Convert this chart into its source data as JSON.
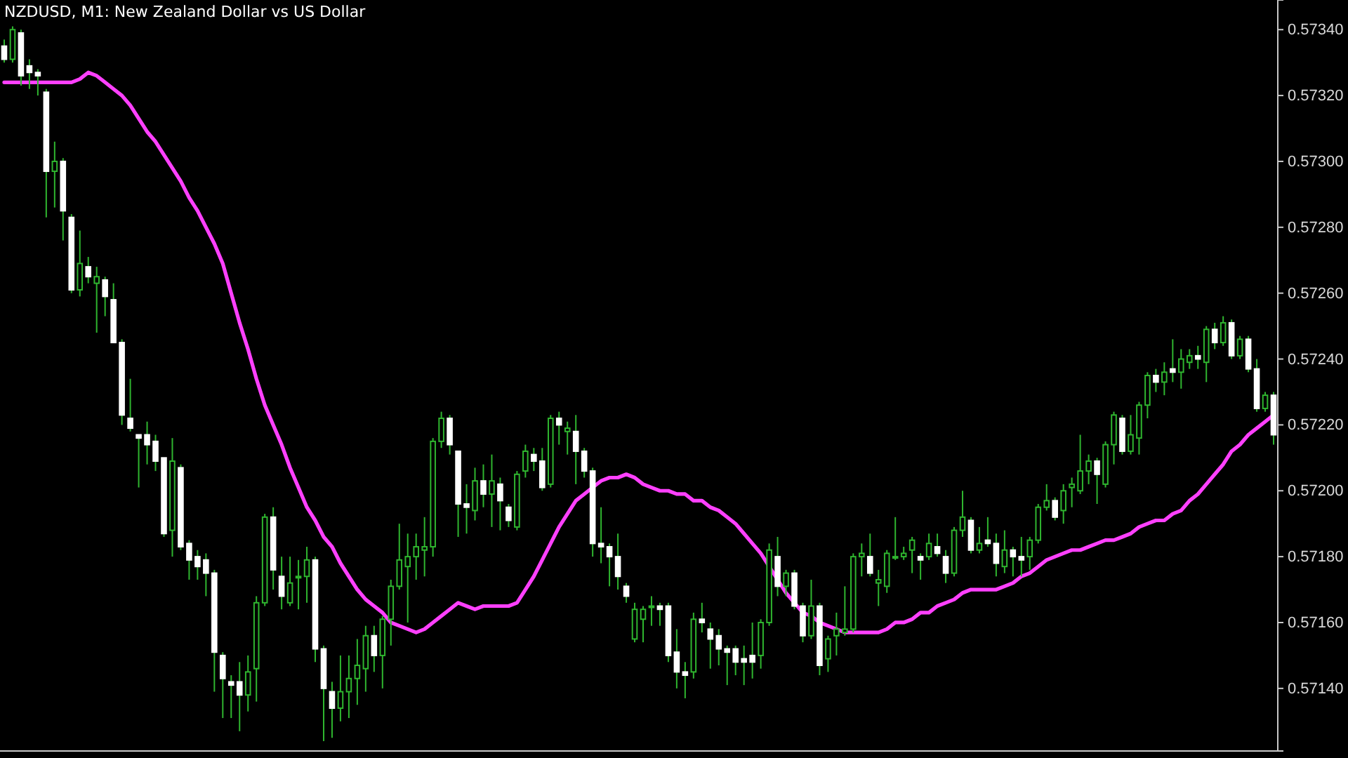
{
  "chart_data": {
    "type": "candlestick",
    "title": "NZDUSD, M1:  New Zealand Dollar vs US Dollar",
    "categories": [
      null,
      null,
      null,
      null,
      null,
      null,
      null,
      null,
      null,
      null,
      null,
      null,
      null,
      null,
      null,
      null,
      null,
      null,
      null,
      null,
      null,
      null,
      null,
      null,
      null,
      null,
      null,
      null,
      null,
      null,
      null,
      null,
      null,
      null,
      null,
      null,
      null,
      null,
      null,
      null,
      null,
      null,
      null,
      null,
      null,
      null,
      null,
      null,
      null,
      null,
      null,
      null,
      null,
      null,
      null,
      null,
      null,
      null,
      null,
      null,
      null,
      null,
      null,
      null,
      null,
      null,
      null,
      null,
      null,
      null,
      null,
      null,
      null,
      null,
      null,
      null,
      null,
      null,
      null,
      null,
      null,
      null,
      null,
      null,
      null,
      null,
      null,
      null,
      null,
      null,
      null,
      null,
      null,
      null,
      null,
      null,
      null,
      null,
      null,
      null,
      null,
      null,
      null,
      null,
      null,
      null,
      null,
      null,
      null,
      null,
      null,
      null,
      null,
      null,
      null,
      null,
      null,
      null,
      null,
      null,
      null,
      null,
      null,
      null,
      null,
      null,
      null,
      null,
      null,
      null,
      null,
      null,
      null,
      null,
      null,
      null,
      null,
      null,
      null,
      null,
      null,
      null,
      null,
      null,
      null,
      null,
      null,
      null,
      null,
      null,
      null,
      null
    ],
    "color": "#2fb52f",
    "colors": [
      "#ffffff",
      "#2fb52f",
      "#ffffff",
      "#ffffff",
      "#ffffff",
      "#ffffff",
      "#2fb52f",
      "#ffffff",
      "#ffffff",
      "#2fb52f",
      "#ffffff",
      "#2fb52f",
      "#ffffff",
      "#ffffff",
      "#ffffff",
      "#ffffff",
      "#ffffff",
      "#ffffff",
      "#ffffff",
      "#ffffff",
      "#2fb52f",
      "#ffffff",
      "#ffffff",
      "#ffffff",
      "#ffffff",
      "#ffffff",
      "#ffffff",
      "#ffffff",
      "#ffffff",
      "#2fb52f",
      "#2fb52f",
      "#2fb52f",
      "#ffffff",
      "#ffffff",
      "#2fb52f",
      "#2fb52f",
      "#2fb52f",
      "#ffffff",
      "#ffffff",
      "#ffffff",
      "#2fb52f",
      "#2fb52f",
      "#2fb52f",
      "#2fb52f",
      "#ffffff",
      "#2fb52f",
      "#2fb52f",
      "#2fb52f",
      "#2fb52f",
      "#2fb52f",
      "#2fb52f",
      "#2fb52f",
      "#2fb52f",
      "#ffffff",
      "#ffffff",
      "#ffffff",
      "#2fb52f",
      "#ffffff",
      "#2fb52f",
      "#ffffff",
      "#ffffff",
      "#2fb52f",
      "#2fb52f",
      "#ffffff",
      "#ffffff",
      "#2fb52f",
      "#ffffff",
      "#2fb52f",
      "#ffffff",
      "#ffffff",
      "#ffffff",
      "#ffffff",
      "#ffffff",
      "#ffffff",
      "#ffffff",
      "#2fb52f",
      "#2fb52f",
      "#2fb52f",
      "#ffffff",
      "#ffffff",
      "#ffffff",
      "#ffffff",
      "#2fb52f",
      "#ffffff",
      "#ffffff",
      "#ffffff",
      "#ffffff",
      "#ffffff",
      "#ffffff",
      "#ffffff",
      "#2fb52f",
      "#2fb52f",
      "#ffffff",
      "#2fb52f",
      "#ffffff",
      "#ffffff",
      "#2fb52f",
      "#ffffff",
      "#2fb52f",
      "#2fb52f",
      "#2fb52f",
      "#2fb52f",
      "#2fb52f",
      "#ffffff",
      "#2fb52f",
      "#2fb52f",
      "#2fb52f",
      "#2fb52f",
      "#2fb52f",
      "#ffffff",
      "#2fb52f",
      "#ffffff",
      "#ffffff",
      "#2fb52f",
      "#2fb52f",
      "#ffffff",
      "#2fb52f",
      "#ffffff",
      "#ffffff",
      "#2fb52f",
      "#ffffff",
      "#ffffff",
      "#2fb52f",
      "#2fb52f",
      "#2fb52f",
      "#ffffff",
      "#2fb52f",
      "#2fb52f",
      "#2fb52f",
      "#2fb52f",
      "#ffffff",
      "#2fb52f",
      "#2fb52f",
      "#ffffff",
      "#2fb52f",
      "#2fb52f",
      "#2fb52f",
      "#ffffff",
      "#2fb52f",
      "#ffffff",
      "#2fb52f",
      "#2fb52f",
      "#ffffff",
      "#2fb52f",
      "#ffffff",
      "#2fb52f",
      "#ffffff",
      "#2fb52f",
      "#ffffff",
      "#ffffff",
      "#2fb52f",
      "#ffffff"
    ],
    "ohlc": [
      [
        0.57335,
        0.57337,
        0.5733,
        0.57331
      ],
      [
        0.57331,
        0.57341,
        0.5733,
        0.5734
      ],
      [
        0.57339,
        0.5734,
        0.57323,
        0.57326
      ],
      [
        0.57329,
        0.57331,
        0.57322,
        0.57327
      ],
      [
        0.57327,
        0.57328,
        0.5732,
        0.57326
      ],
      [
        0.57321,
        0.57322,
        0.57283,
        0.57297
      ],
      [
        0.57297,
        0.57306,
        0.57286,
        0.573
      ],
      [
        0.573,
        0.57301,
        0.57276,
        0.57285
      ],
      [
        0.57283,
        0.57284,
        0.5726,
        0.57261
      ],
      [
        0.57261,
        0.57279,
        0.57259,
        0.57269
      ],
      [
        0.57268,
        0.57271,
        0.57263,
        0.57265
      ],
      [
        0.57263,
        0.57268,
        0.57248,
        0.57265
      ],
      [
        0.57264,
        0.57265,
        0.57253,
        0.57259
      ],
      [
        0.57258,
        0.57263,
        0.57245,
        0.57245
      ],
      [
        0.57245,
        0.57246,
        0.5722,
        0.57223
      ],
      [
        0.57222,
        0.57234,
        0.57218,
        0.57219
      ],
      [
        0.57217,
        0.57217,
        0.57201,
        0.57216
      ],
      [
        0.57217,
        0.57221,
        0.57208,
        0.57214
      ],
      [
        0.57215,
        0.57217,
        0.57206,
        0.57209
      ],
      [
        0.5721,
        0.5721,
        0.57186,
        0.57187
      ],
      [
        0.57188,
        0.57216,
        0.5718,
        0.57209
      ],
      [
        0.57207,
        0.57208,
        0.57182,
        0.57183
      ],
      [
        0.57184,
        0.57185,
        0.57173,
        0.57179
      ],
      [
        0.5718,
        0.57182,
        0.57173,
        0.57177
      ],
      [
        0.57179,
        0.57181,
        0.57168,
        0.57175
      ],
      [
        0.57175,
        0.57176,
        0.57139,
        0.57151
      ],
      [
        0.5715,
        0.57151,
        0.57131,
        0.57143
      ],
      [
        0.57142,
        0.57144,
        0.57131,
        0.57141
      ],
      [
        0.57142,
        0.57148,
        0.57127,
        0.57138
      ],
      [
        0.57138,
        0.5715,
        0.57133,
        0.57145
      ],
      [
        0.57146,
        0.57168,
        0.57136,
        0.57166
      ],
      [
        0.57166,
        0.57193,
        0.57165,
        0.57192
      ],
      [
        0.57192,
        0.57195,
        0.5717,
        0.57176
      ],
      [
        0.57174,
        0.5718,
        0.57164,
        0.57168
      ],
      [
        0.57166,
        0.5718,
        0.57165,
        0.57172
      ],
      [
        0.57174,
        0.57179,
        0.57164,
        0.57174
      ],
      [
        0.57174,
        0.57183,
        0.57166,
        0.57179
      ],
      [
        0.57179,
        0.5718,
        0.57148,
        0.57152
      ],
      [
        0.57152,
        0.57153,
        0.57124,
        0.5714
      ],
      [
        0.57139,
        0.57142,
        0.57125,
        0.57134
      ],
      [
        0.57134,
        0.5715,
        0.5713,
        0.57139
      ],
      [
        0.57139,
        0.5715,
        0.57131,
        0.57143
      ],
      [
        0.57143,
        0.57155,
        0.57135,
        0.57147
      ],
      [
        0.57146,
        0.57159,
        0.57139,
        0.57156
      ],
      [
        0.57156,
        0.57159,
        0.57145,
        0.5715
      ],
      [
        0.5715,
        0.57162,
        0.5714,
        0.57161
      ],
      [
        0.57161,
        0.57173,
        0.57153,
        0.57171
      ],
      [
        0.57171,
        0.5719,
        0.5717,
        0.57179
      ],
      [
        0.57177,
        0.57187,
        0.5716,
        0.5718
      ],
      [
        0.5718,
        0.57187,
        0.57173,
        0.57183
      ],
      [
        0.57182,
        0.57192,
        0.57174,
        0.57183
      ],
      [
        0.57183,
        0.57216,
        0.5718,
        0.57215
      ],
      [
        0.57215,
        0.57224,
        0.57213,
        0.57222
      ],
      [
        0.57222,
        0.57223,
        0.57211,
        0.57214
      ],
      [
        0.57212,
        0.57212,
        0.57186,
        0.57196
      ],
      [
        0.57196,
        0.57202,
        0.57187,
        0.57195
      ],
      [
        0.57194,
        0.57207,
        0.57191,
        0.57203
      ],
      [
        0.57203,
        0.57208,
        0.57195,
        0.57199
      ],
      [
        0.57199,
        0.57211,
        0.57189,
        0.57203
      ],
      [
        0.57202,
        0.57204,
        0.57188,
        0.57197
      ],
      [
        0.57195,
        0.57196,
        0.57189,
        0.57191
      ],
      [
        0.57189,
        0.57206,
        0.57188,
        0.57205
      ],
      [
        0.57206,
        0.57214,
        0.57204,
        0.57212
      ],
      [
        0.57211,
        0.57213,
        0.57206,
        0.57209
      ],
      [
        0.57209,
        0.57213,
        0.572,
        0.57201
      ],
      [
        0.57202,
        0.57223,
        0.57201,
        0.57222
      ],
      [
        0.57222,
        0.57224,
        0.57214,
        0.5722
      ],
      [
        0.57218,
        0.57221,
        0.57211,
        0.57219
      ],
      [
        0.57218,
        0.57223,
        0.57202,
        0.57212
      ],
      [
        0.57212,
        0.57213,
        0.57204,
        0.57206
      ],
      [
        0.57206,
        0.57207,
        0.5718,
        0.57184
      ],
      [
        0.57184,
        0.57195,
        0.57178,
        0.57183
      ],
      [
        0.57183,
        0.57184,
        0.57171,
        0.5718
      ],
      [
        0.5718,
        0.57187,
        0.5717,
        0.57174
      ],
      [
        0.57171,
        0.57172,
        0.57166,
        0.57168
      ],
      [
        0.57155,
        0.57166,
        0.57154,
        0.57164
      ],
      [
        0.57161,
        0.57165,
        0.57154,
        0.57164
      ],
      [
        0.57165,
        0.57168,
        0.57159,
        0.57165
      ],
      [
        0.57165,
        0.57166,
        0.57159,
        0.57164
      ],
      [
        0.57165,
        0.57166,
        0.57148,
        0.5715
      ],
      [
        0.57151,
        0.57158,
        0.5714,
        0.57145
      ],
      [
        0.57145,
        0.57148,
        0.57137,
        0.57144
      ],
      [
        0.57145,
        0.57163,
        0.57143,
        0.57161
      ],
      [
        0.57161,
        0.57166,
        0.57157,
        0.5716
      ],
      [
        0.57158,
        0.5716,
        0.57146,
        0.57155
      ],
      [
        0.57156,
        0.57158,
        0.57147,
        0.57152
      ],
      [
        0.57152,
        0.57153,
        0.57141,
        0.57151
      ],
      [
        0.57152,
        0.57153,
        0.57144,
        0.57148
      ],
      [
        0.57149,
        0.57153,
        0.57141,
        0.57148
      ],
      [
        0.5715,
        0.5716,
        0.57143,
        0.57148
      ],
      [
        0.5715,
        0.57161,
        0.57146,
        0.5716
      ],
      [
        0.5716,
        0.57184,
        0.57159,
        0.57182
      ],
      [
        0.5718,
        0.57186,
        0.57168,
        0.57171
      ],
      [
        0.57171,
        0.57176,
        0.57168,
        0.57175
      ],
      [
        0.57175,
        0.57176,
        0.57164,
        0.57165
      ],
      [
        0.57165,
        0.57166,
        0.57154,
        0.57156
      ],
      [
        0.57156,
        0.57173,
        0.57155,
        0.57165
      ],
      [
        0.57165,
        0.57166,
        0.57144,
        0.57147
      ],
      [
        0.57149,
        0.57156,
        0.57145,
        0.57155
      ],
      [
        0.57156,
        0.57163,
        0.5715,
        0.57158
      ],
      [
        0.57157,
        0.57171,
        0.57156,
        0.57158
      ],
      [
        0.57158,
        0.57181,
        0.57157,
        0.5718
      ],
      [
        0.5718,
        0.57184,
        0.57174,
        0.57181
      ],
      [
        0.5718,
        0.57187,
        0.57174,
        0.57175
      ],
      [
        0.57172,
        0.57176,
        0.57165,
        0.57173
      ],
      [
        0.57171,
        0.57182,
        0.57169,
        0.57181
      ],
      [
        0.5718,
        0.57192,
        0.57179,
        0.5718
      ],
      [
        0.5718,
        0.57183,
        0.57179,
        0.57181
      ],
      [
        0.57182,
        0.57186,
        0.57175,
        0.57185
      ],
      [
        0.5718,
        0.57181,
        0.57173,
        0.57179
      ],
      [
        0.5718,
        0.57187,
        0.57179,
        0.57184
      ],
      [
        0.57183,
        0.57187,
        0.5718,
        0.57181
      ],
      [
        0.5718,
        0.57182,
        0.57172,
        0.57175
      ],
      [
        0.57175,
        0.57189,
        0.57174,
        0.57188
      ],
      [
        0.57188,
        0.572,
        0.57186,
        0.57192
      ],
      [
        0.57191,
        0.57192,
        0.57181,
        0.57182
      ],
      [
        0.57182,
        0.57189,
        0.57181,
        0.57184
      ],
      [
        0.57185,
        0.57192,
        0.57183,
        0.57184
      ],
      [
        0.57184,
        0.57187,
        0.57174,
        0.57178
      ],
      [
        0.57177,
        0.57188,
        0.57175,
        0.57182
      ],
      [
        0.57182,
        0.57183,
        0.57174,
        0.5718
      ],
      [
        0.5718,
        0.57186,
        0.57174,
        0.57179
      ],
      [
        0.5718,
        0.57186,
        0.57176,
        0.57185
      ],
      [
        0.57185,
        0.57196,
        0.57184,
        0.57195
      ],
      [
        0.57195,
        0.57202,
        0.57194,
        0.57197
      ],
      [
        0.57197,
        0.57198,
        0.57191,
        0.57192
      ],
      [
        0.57194,
        0.57202,
        0.5719,
        0.572
      ],
      [
        0.57201,
        0.57204,
        0.57195,
        0.57202
      ],
      [
        0.572,
        0.57217,
        0.57199,
        0.57206
      ],
      [
        0.57206,
        0.57211,
        0.57202,
        0.57209
      ],
      [
        0.57209,
        0.5721,
        0.57196,
        0.57205
      ],
      [
        0.57202,
        0.57215,
        0.57201,
        0.57214
      ],
      [
        0.57214,
        0.57224,
        0.57208,
        0.57223
      ],
      [
        0.57222,
        0.57223,
        0.57211,
        0.57212
      ],
      [
        0.57212,
        0.57223,
        0.57211,
        0.57217
      ],
      [
        0.57216,
        0.57227,
        0.57211,
        0.57226
      ],
      [
        0.57226,
        0.57236,
        0.57222,
        0.57235
      ],
      [
        0.57235,
        0.57237,
        0.5723,
        0.57233
      ],
      [
        0.57233,
        0.57239,
        0.57229,
        0.57236
      ],
      [
        0.57237,
        0.57246,
        0.57233,
        0.57236
      ],
      [
        0.57236,
        0.57243,
        0.57231,
        0.5724
      ],
      [
        0.57239,
        0.57243,
        0.57237,
        0.57241
      ],
      [
        0.57241,
        0.57244,
        0.57237,
        0.5724
      ],
      [
        0.57239,
        0.5725,
        0.57233,
        0.57249
      ],
      [
        0.57249,
        0.57251,
        0.57243,
        0.57245
      ],
      [
        0.57245,
        0.57253,
        0.57244,
        0.57251
      ],
      [
        0.57251,
        0.57252,
        0.5724,
        0.57241
      ],
      [
        0.57241,
        0.57247,
        0.5724,
        0.57246
      ],
      [
        0.57246,
        0.57247,
        0.57236,
        0.57237
      ],
      [
        0.57237,
        0.5724,
        0.57224,
        0.57225
      ],
      [
        0.57225,
        0.5723,
        0.57224,
        0.57229
      ],
      [
        0.57229,
        0.5723,
        0.57214,
        0.57217
      ]
    ],
    "series": [
      {
        "type": "line",
        "color": "#ff40ff",
        "values": [
          0.57324,
          0.57324,
          0.57324,
          0.57324,
          0.57324,
          0.57324,
          0.57324,
          0.57324,
          0.57324,
          0.57325,
          0.57327,
          0.57326,
          0.57324,
          0.57322,
          0.5732,
          0.57317,
          0.57313,
          0.57309,
          0.57306,
          0.57302,
          0.57298,
          0.57294,
          0.57289,
          0.57285,
          0.5728,
          0.57275,
          0.57269,
          0.5726,
          0.57251,
          0.57243,
          0.57234,
          0.57226,
          0.5722,
          0.57214,
          0.57207,
          0.57201,
          0.57195,
          0.57191,
          0.57186,
          0.57183,
          0.57178,
          0.57174,
          0.5717,
          0.57167,
          0.57165,
          0.57163,
          0.5716,
          0.57159,
          0.57158,
          0.57157,
          0.57158,
          0.5716,
          0.57162,
          0.57164,
          0.57166,
          0.57165,
          0.57164,
          0.57165,
          0.57165,
          0.57165,
          0.57165,
          0.57166,
          0.5717,
          0.57174,
          0.57179,
          0.57184,
          0.57189,
          0.57193,
          0.57197,
          0.57199,
          0.57201,
          0.57203,
          0.57204,
          0.57204,
          0.57205,
          0.57204,
          0.57202,
          0.57201,
          0.572,
          0.572,
          0.57199,
          0.57199,
          0.57197,
          0.57197,
          0.57195,
          0.57194,
          0.57192,
          0.5719,
          0.57187,
          0.57184,
          0.57181,
          0.57177,
          0.57173,
          0.57169,
          0.57166,
          0.57163,
          0.57162,
          0.5716,
          0.57159,
          0.57158,
          0.57157,
          0.57157,
          0.57157,
          0.57157,
          0.57157,
          0.57158,
          0.5716,
          0.5716,
          0.57161,
          0.57163,
          0.57163,
          0.57165,
          0.57166,
          0.57167,
          0.57169,
          0.5717,
          0.5717,
          0.5717,
          0.5717,
          0.57171,
          0.57172,
          0.57174,
          0.57175,
          0.57177,
          0.57179,
          0.5718,
          0.57181,
          0.57182,
          0.57182,
          0.57183,
          0.57184,
          0.57185,
          0.57185,
          0.57186,
          0.57187,
          0.57189,
          0.5719,
          0.57191,
          0.57191,
          0.57193,
          0.57194,
          0.57197,
          0.57199,
          0.57202,
          0.57205,
          0.57208,
          0.57212,
          0.57214,
          0.57217,
          0.57219,
          0.57221,
          0.57223
        ]
      }
    ],
    "ylim": [
      0.57121,
      0.57349
    ],
    "yticks": [
      {
        "value": 0.5714,
        "label": "0.57140"
      },
      {
        "value": 0.5716,
        "label": "0.57160"
      },
      {
        "value": 0.5718,
        "label": "0.57180"
      },
      {
        "value": 0.572,
        "label": "0.57200"
      },
      {
        "value": 0.5722,
        "label": "0.57220"
      },
      {
        "value": 0.5724,
        "label": "0.57240"
      },
      {
        "value": 0.5726,
        "label": "0.57260"
      },
      {
        "value": 0.5728,
        "label": "0.57280"
      },
      {
        "value": 0.573,
        "label": "0.57300"
      },
      {
        "value": 0.5732,
        "label": "0.57320"
      },
      {
        "value": 0.5734,
        "label": "0.57340"
      }
    ],
    "tick_labels": "y"
  }
}
